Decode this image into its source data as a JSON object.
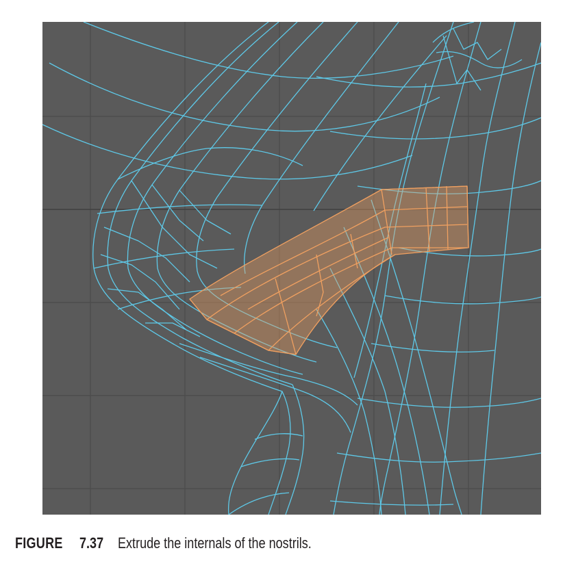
{
  "figure": {
    "label": "FIGURE",
    "number": "7.37",
    "caption": "Extrude the internals of the nostrils."
  },
  "viewport": {
    "background_color": "#5a5a5a",
    "grid_color": "#4a4a4a",
    "wire_color": "#5ec9e8",
    "selection_color": "#f0a060"
  }
}
